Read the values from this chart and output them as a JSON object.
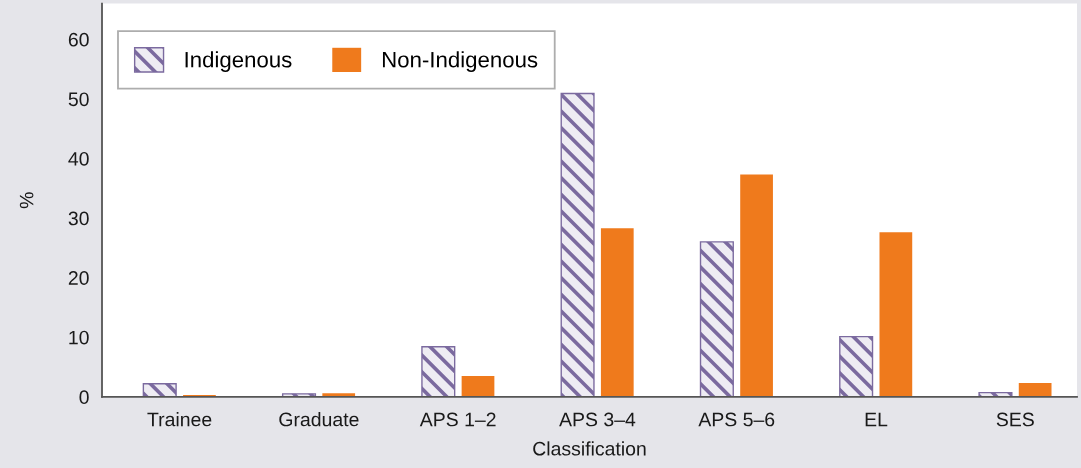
{
  "chart_data": {
    "type": "bar",
    "xlabel": "Classification",
    "ylabel": "%",
    "categories": [
      "Trainee",
      "Graduate",
      "APS 1–2",
      "APS 3–4",
      "APS 5–6",
      "EL",
      "SES"
    ],
    "series": [
      {
        "name": "Indigenous",
        "color": "#7b6a9f",
        "values": [
          2.2,
          0.5,
          8.4,
          50.9,
          26.0,
          10.1,
          0.7
        ]
      },
      {
        "name": "Non-Indigenous",
        "color": "#ef7a1c",
        "values": [
          0.3,
          0.6,
          3.5,
          28.3,
          37.3,
          27.6,
          2.3
        ]
      }
    ],
    "ylim": [
      0,
      66
    ],
    "yticks": [
      0,
      10,
      20,
      30,
      40,
      50,
      60
    ],
    "grid": false,
    "legend": "top left"
  }
}
